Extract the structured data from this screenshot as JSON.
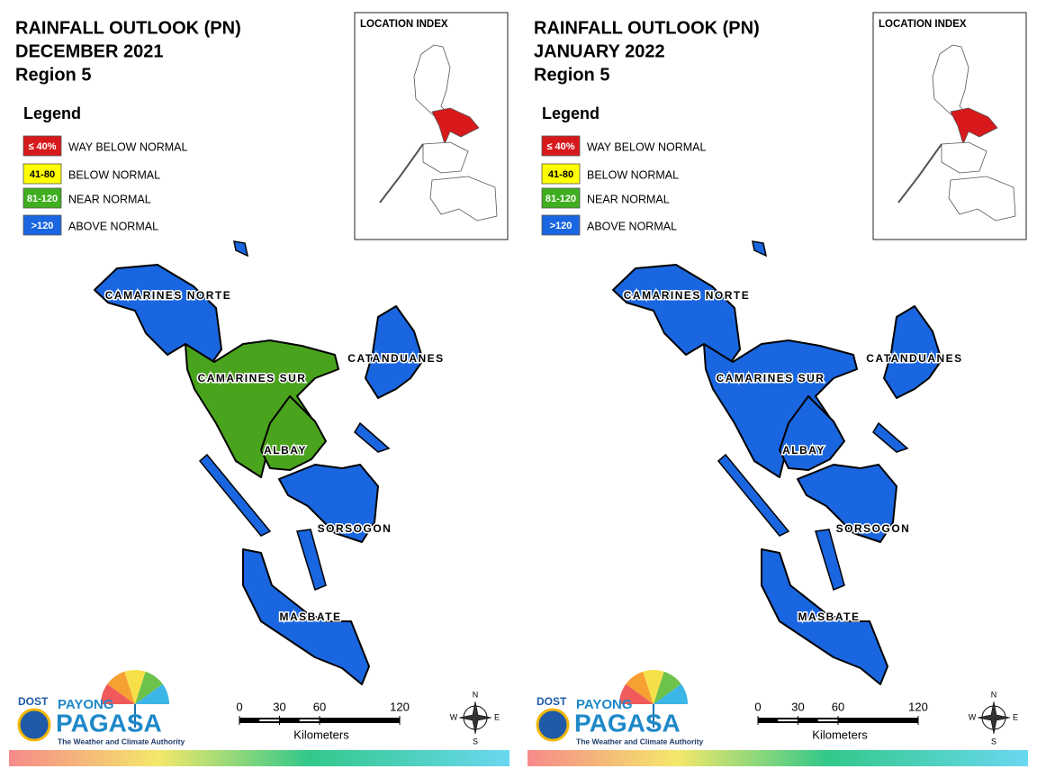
{
  "panels": [
    {
      "title_lines": [
        "RAINFALL OUTLOOK (PN)",
        "DECEMBER 2021",
        "Region 5"
      ],
      "legend": {
        "title": "Legend",
        "items": [
          {
            "range": "≤ 40%",
            "label": "WAY BELOW NORMAL",
            "color": "#d7191c"
          },
          {
            "range": "41-80",
            "label": "BELOW NORMAL",
            "color": "#ffff00"
          },
          {
            "range": "81-120",
            "label": "NEAR NORMAL",
            "color": "#3fae1f"
          },
          {
            "range": ">120",
            "label": "ABOVE NORMAL",
            "color": "#1a66e0"
          }
        ]
      },
      "index_title": "LOCATION INDEX",
      "provinces": [
        {
          "name": "CAMARINES NORTE",
          "color": "#1a66e0"
        },
        {
          "name": "CAMARINES SUR",
          "color": "#4aa31c"
        },
        {
          "name": "CATANDUANES",
          "color": "#1a66e0"
        },
        {
          "name": "ALBAY",
          "color": "#4aa31c"
        },
        {
          "name": "SORSOGON",
          "color": "#1a66e0"
        },
        {
          "name": "MASBATE",
          "color": "#1a66e0"
        }
      ],
      "scale": {
        "ticks": [
          0,
          30,
          60,
          120
        ],
        "unit": "Kilometers"
      },
      "compass": {
        "n": "N",
        "e": "E",
        "s": "S",
        "w": "W"
      },
      "logo": {
        "dost": "DOST",
        "payong": "PAYONG",
        "pagasa": "PAGASA",
        "tagline": "The Weather and Climate Authority"
      }
    },
    {
      "title_lines": [
        "RAINFALL OUTLOOK (PN)",
        "JANUARY 2022",
        "Region 5"
      ],
      "legend": {
        "title": "Legend",
        "items": [
          {
            "range": "≤ 40%",
            "label": "WAY BELOW NORMAL",
            "color": "#d7191c"
          },
          {
            "range": "41-80",
            "label": "BELOW NORMAL",
            "color": "#ffff00"
          },
          {
            "range": "81-120",
            "label": "NEAR NORMAL",
            "color": "#3fae1f"
          },
          {
            "range": ">120",
            "label": "ABOVE NORMAL",
            "color": "#1a66e0"
          }
        ]
      },
      "index_title": "LOCATION INDEX",
      "provinces": [
        {
          "name": "CAMARINES NORTE",
          "color": "#1a66e0"
        },
        {
          "name": "CAMARINES SUR",
          "color": "#1a66e0"
        },
        {
          "name": "CATANDUANES",
          "color": "#1a66e0"
        },
        {
          "name": "ALBAY",
          "color": "#1a66e0"
        },
        {
          "name": "SORSOGON",
          "color": "#1a66e0"
        },
        {
          "name": "MASBATE",
          "color": "#1a66e0"
        }
      ],
      "scale": {
        "ticks": [
          0,
          30,
          60,
          120
        ],
        "unit": "Kilometers"
      },
      "compass": {
        "n": "N",
        "e": "E",
        "s": "S",
        "w": "W"
      },
      "logo": {
        "dost": "DOST",
        "payong": "PAYONG",
        "pagasa": "PAGASA",
        "tagline": "The Weather and Climate Authority"
      }
    }
  ]
}
